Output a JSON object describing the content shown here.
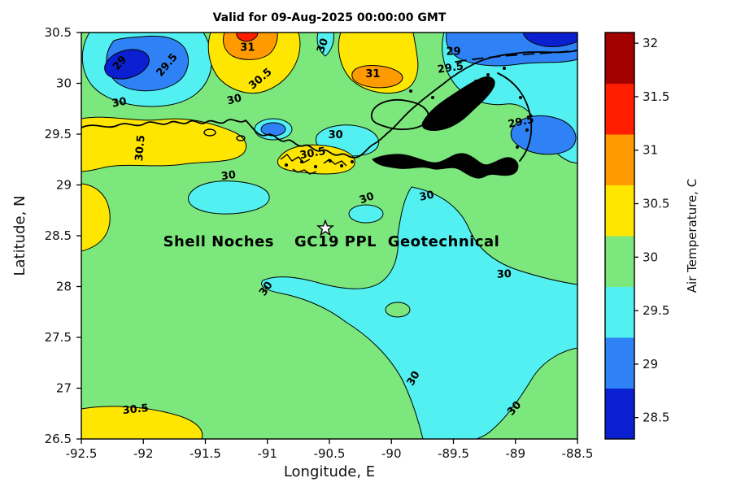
{
  "palette": {
    "darkblue": "#0A1FD0",
    "blue": "#2E82F5",
    "cyan": "#52F0F0",
    "green": "#7CE77C",
    "yellow": "#FFE600",
    "orange": "#FF9A00",
    "red": "#FF1E00",
    "darkred": "#A30000"
  },
  "chart_data": {
    "type": "filled_contour_map",
    "title": "Valid for 09-Aug-2025 00:00:00 GMT",
    "xlabel": "Longitude, E",
    "ylabel": "Latitude, N",
    "xlim": [
      -92.5,
      -88.5
    ],
    "ylim": [
      26.5,
      30.5
    ],
    "x_ticks": [
      -92.5,
      -92,
      -91.5,
      -91,
      -90.5,
      -90,
      -89.5,
      -89,
      -88.5
    ],
    "y_ticks": [
      26.5,
      27,
      27.5,
      28,
      28.5,
      29,
      29.5,
      30,
      30.5
    ],
    "grid": false,
    "contour_levels": [
      28.5,
      29,
      29.5,
      30,
      30.5,
      31,
      31.5,
      32
    ],
    "colorbar": {
      "label": "Air Temperature, C",
      "ticks": [
        28.5,
        29,
        29.5,
        30,
        30.5,
        31,
        31.5,
        32
      ],
      "bands": [
        {
          "range": [
            28.5,
            29.0
          ],
          "color": "darkblue"
        },
        {
          "range": [
            29.0,
            29.5
          ],
          "color": "blue"
        },
        {
          "range": [
            29.5,
            30.0
          ],
          "color": "cyan"
        },
        {
          "range": [
            30.0,
            30.5
          ],
          "color": "green"
        },
        {
          "range": [
            30.5,
            31.0
          ],
          "color": "yellow"
        },
        {
          "range": [
            31.0,
            31.5
          ],
          "color": "orange"
        },
        {
          "range": [
            31.5,
            32.0
          ],
          "color": "red"
        },
        {
          "range": [
            32.0,
            32.5
          ],
          "color": "darkred"
        }
      ]
    },
    "contour_labels": [
      {
        "level": 29,
        "lon": -92.17,
        "lat": 30.18,
        "rot": -50
      },
      {
        "level": 29.5,
        "lon": -91.79,
        "lat": 30.16,
        "rot": -50
      },
      {
        "level": 30,
        "lon": -92.19,
        "lat": 29.78,
        "rot": -10
      },
      {
        "level": 30.5,
        "lon": -92.0,
        "lat": 29.36,
        "rot": -85
      },
      {
        "level": 31,
        "lon": -91.16,
        "lat": 30.32,
        "rot": 0
      },
      {
        "level": 30.5,
        "lon": -91.04,
        "lat": 30.02,
        "rot": -40
      },
      {
        "level": 30,
        "lon": -91.26,
        "lat": 29.81,
        "rot": -15
      },
      {
        "level": 30,
        "lon": -90.53,
        "lat": 30.36,
        "rot": -70
      },
      {
        "level": 31,
        "lon": -90.15,
        "lat": 30.06,
        "rot": 0
      },
      {
        "level": 29,
        "lon": -89.5,
        "lat": 30.28,
        "rot": 0
      },
      {
        "level": 29.5,
        "lon": -89.52,
        "lat": 30.12,
        "rot": -8
      },
      {
        "level": 29.5,
        "lon": -88.95,
        "lat": 29.59,
        "rot": -12
      },
      {
        "level": 30,
        "lon": -90.45,
        "lat": 29.46,
        "rot": 0
      },
      {
        "level": 30.5,
        "lon": -90.63,
        "lat": 29.28,
        "rot": -10
      },
      {
        "level": 30,
        "lon": -91.31,
        "lat": 29.06,
        "rot": -8
      },
      {
        "level": 30,
        "lon": -90.19,
        "lat": 28.84,
        "rot": -20
      },
      {
        "level": 30,
        "lon": -89.71,
        "lat": 28.86,
        "rot": -12
      },
      {
        "level": 30,
        "lon": -90.99,
        "lat": 27.96,
        "rot": -55
      },
      {
        "level": 30,
        "lon": -89.09,
        "lat": 28.09,
        "rot": -3
      },
      {
        "level": 30,
        "lon": -89.8,
        "lat": 27.08,
        "rot": -60
      },
      {
        "level": 30,
        "lon": -88.99,
        "lat": 26.78,
        "rot": -48
      },
      {
        "level": 30.5,
        "lon": -92.06,
        "lat": 26.76,
        "rot": -6
      }
    ],
    "marker": {
      "type": "pentagram",
      "fill": "white",
      "lon": -90.53,
      "lat": 28.57
    },
    "annotation": {
      "left": "Shell Noches",
      "right": "GC19 PPL  Geotechnical",
      "lat": 28.44
    },
    "filled_regions": [
      {
        "name": "background",
        "band": [
          30.0,
          30.5
        ],
        "center": [
          -90.5,
          28.5
        ]
      },
      {
        "name": "cool-pool-topleft",
        "band": [
          29.5,
          30.0
        ],
        "center": [
          -91.98,
          30.14
        ]
      },
      {
        "name": "cool-pool-topleft-core",
        "band": [
          29.0,
          29.5
        ],
        "center": [
          -91.99,
          30.2
        ]
      },
      {
        "name": "coldest-topleft",
        "band": [
          28.5,
          29.0
        ],
        "center": [
          -92.13,
          30.19
        ]
      },
      {
        "name": "warm-topcenter",
        "band": [
          30.5,
          31.0
        ],
        "center": [
          -91.12,
          30.22
        ]
      },
      {
        "name": "warm-topcenter-core",
        "band": [
          31.0,
          31.5
        ],
        "center": [
          -91.16,
          30.38
        ]
      },
      {
        "name": "hot-topcenter-sliver",
        "band": [
          31.5,
          32.0
        ],
        "center": [
          -91.18,
          30.46
        ]
      },
      {
        "name": "cool-tongue-topmid",
        "band": [
          29.5,
          30.0
        ],
        "center": [
          -90.53,
          30.39
        ]
      },
      {
        "name": "warm-topright-patch",
        "band": [
          30.5,
          31.0
        ],
        "center": [
          -90.11,
          30.2
        ]
      },
      {
        "name": "warm-topright-core",
        "band": [
          31.0,
          31.5
        ],
        "center": [
          -90.12,
          30.07
        ]
      },
      {
        "name": "cool-northeast",
        "band": [
          29.5,
          30.0
        ],
        "center": [
          -89.06,
          29.94
        ]
      },
      {
        "name": "cool-northeast-band",
        "band": [
          29.0,
          29.5
        ],
        "center": [
          -89.06,
          30.36
        ]
      },
      {
        "name": "coldest-topright",
        "band": [
          28.5,
          29.0
        ],
        "center": [
          -88.73,
          30.44
        ]
      },
      {
        "name": "cool-eddy-east",
        "band": [
          29.0,
          29.5
        ],
        "center": [
          -88.78,
          29.5
        ]
      },
      {
        "name": "warm-west-band",
        "band": [
          30.5,
          31.0
        ],
        "center": [
          -91.88,
          29.42
        ]
      },
      {
        "name": "warm-west-strip",
        "band": [
          30.5,
          31.0
        ],
        "center": [
          -92.4,
          28.68
        ]
      },
      {
        "name": "cool-patch-west",
        "band": [
          29.5,
          30.0
        ],
        "center": [
          -91.32,
          28.88
        ]
      },
      {
        "name": "cool-eddy-small",
        "band": [
          29.0,
          29.5
        ],
        "center": [
          -90.95,
          29.55
        ]
      },
      {
        "name": "cool-patch-barataria",
        "band": [
          29.5,
          30.0
        ],
        "center": [
          -90.35,
          29.46
        ]
      },
      {
        "name": "warm-patch-coast",
        "band": [
          30.5,
          31.0
        ],
        "center": [
          -90.6,
          29.25
        ]
      },
      {
        "name": "cool-oval-center",
        "band": [
          29.5,
          30.0
        ],
        "center": [
          -90.2,
          28.72
        ]
      },
      {
        "name": "cool-swath-southeast",
        "band": [
          29.5,
          30.0
        ],
        "center": [
          -89.61,
          27.7
        ]
      },
      {
        "name": "warm-hole-in-swath",
        "band": [
          30.0,
          30.5
        ],
        "center": [
          -89.95,
          27.77
        ]
      },
      {
        "name": "warm-bottomleft",
        "band": [
          30.5,
          31.0
        ],
        "center": [
          -92.07,
          26.66
        ]
      }
    ],
    "map_features": [
      "Gulf coast coastline",
      "Mississippi River delta",
      "Lake Pontchartrain",
      "Chandeleur Islands arc",
      "barrier islands",
      "coastal marsh islands"
    ]
  }
}
